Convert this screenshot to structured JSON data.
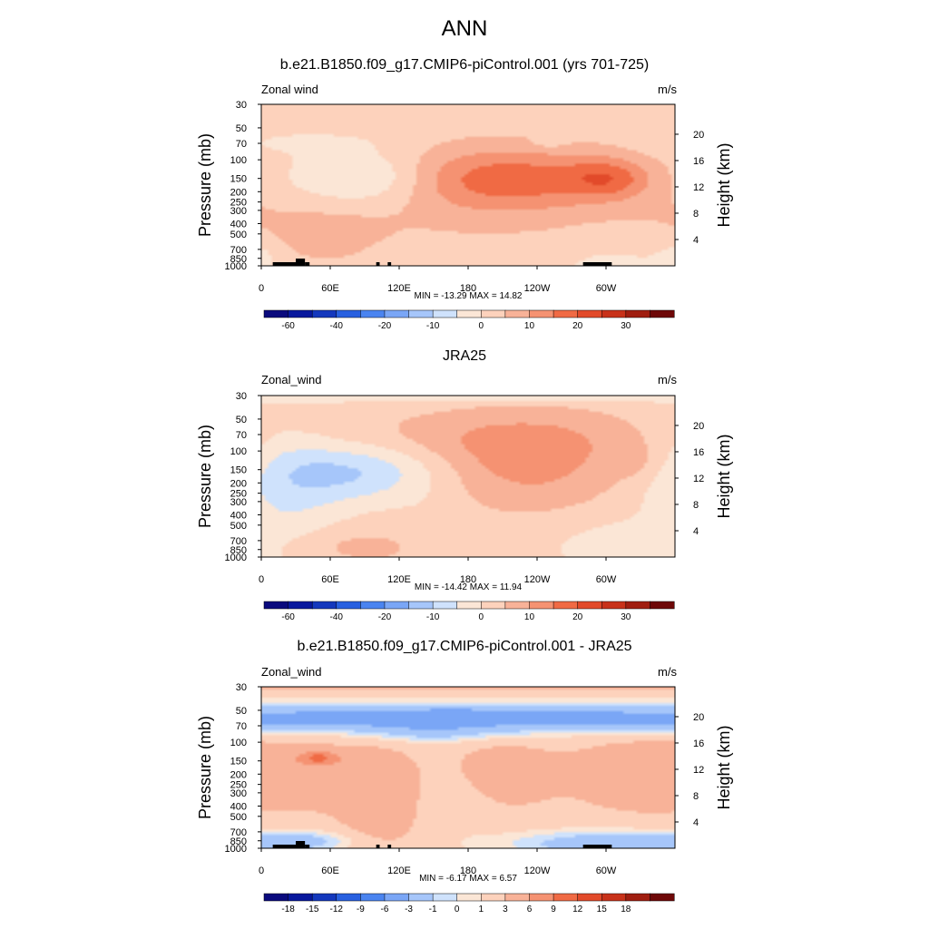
{
  "title": "ANN",
  "chart_data": [
    {
      "type": "heatmap",
      "id": "p1",
      "title": "b.e21.B1850.f09_g17.CMIP6-piControl.001 (yrs 701-725)",
      "variable": "Zonal wind",
      "units": "m/s",
      "ylabel": "Pressure (mb)",
      "ylabel_right": "Height (km)",
      "pressure_ticks": [
        "30",
        "50",
        "70",
        "100",
        "150",
        "200",
        "250",
        "300",
        "400",
        "500",
        "700",
        "850",
        "1000"
      ],
      "height_ticks": [
        "20",
        "16",
        "12",
        "8",
        "4"
      ],
      "lon_ticks": [
        "0",
        "60E",
        "120E",
        "180",
        "120W",
        "60W"
      ],
      "min_label": "MIN = -13.29",
      "max_label": "MAX =  14.82",
      "colorbar_labels": [
        "-60",
        "-40",
        "-20",
        "-10",
        "0",
        "10",
        "20",
        "30"
      ],
      "levels": [
        -70,
        -60,
        -50,
        -40,
        -30,
        -20,
        -15,
        -10,
        -5,
        0,
        5,
        10,
        15,
        20,
        25,
        30,
        35,
        40
      ],
      "min": -13.29,
      "max": 14.82,
      "background": 2,
      "features": [
        {
          "lon": 210,
          "p": 150,
          "dlon": 80,
          "dp": 0.45,
          "v": 12
        },
        {
          "lon": 302,
          "p": 150,
          "dlon": 25,
          "dp": 0.3,
          "v": 10
        },
        {
          "lon": 210,
          "p": 200,
          "dlon": 75,
          "dp": 0.8,
          "v": 5
        },
        {
          "lon": 92,
          "p": 150,
          "dlon": 45,
          "dp": 0.42,
          "v": -12
        },
        {
          "lon": 50,
          "p": 500,
          "dlon": 55,
          "dp": 0.6,
          "v": 5
        },
        {
          "lon": 120,
          "p": 2800,
          "dlon": 30,
          "dp": 1.0,
          "v": -3
        },
        {
          "lon": 40,
          "p": 70,
          "dlon": 40,
          "dp": 0.15,
          "v": -4
        },
        {
          "lon": 315,
          "p": 1000,
          "dlon": 45,
          "dp": 0.4,
          "v": -4
        },
        {
          "lon": 0,
          "p": 800,
          "dlon": 12,
          "dp": 0.3,
          "v": -4
        },
        {
          "lon": 250,
          "p": 70,
          "dlon": 12,
          "dp": 0.1,
          "v": -3
        }
      ],
      "topography": [
        [
          10,
          30
        ],
        [
          30,
          38
        ],
        [
          38,
          42
        ],
        [
          100,
          103
        ],
        [
          110,
          113
        ],
        [
          280,
          305
        ]
      ]
    },
    {
      "type": "heatmap",
      "id": "p2",
      "title": "JRA25",
      "variable": "Zonal_wind",
      "units": "m/s",
      "ylabel": "Pressure (mb)",
      "ylabel_right": "Height (km)",
      "pressure_ticks": [
        "30",
        "50",
        "70",
        "100",
        "150",
        "200",
        "250",
        "300",
        "400",
        "500",
        "700",
        "850",
        "1000"
      ],
      "height_ticks": [
        "20",
        "16",
        "12",
        "8",
        "4"
      ],
      "lon_ticks": [
        "0",
        "60E",
        "120E",
        "180",
        "120W",
        "60W"
      ],
      "min_label": "MIN = -14.42",
      "max_label": "MAX =  11.94",
      "colorbar_labels": [
        "-60",
        "-40",
        "-20",
        "-10",
        "0",
        "10",
        "20",
        "30"
      ],
      "levels": [
        -70,
        -60,
        -50,
        -40,
        -30,
        -20,
        -15,
        -10,
        -5,
        0,
        5,
        10,
        15,
        20,
        25,
        30,
        35,
        40
      ],
      "min": -14.42,
      "max": 11.94,
      "background": 2,
      "features": [
        {
          "lon": 230,
          "p": 130,
          "dlon": 60,
          "dp": 0.7,
          "v": 10
        },
        {
          "lon": 330,
          "p": 130,
          "dlon": 20,
          "dp": 0.3,
          "v": 4
        },
        {
          "lon": 200,
          "p": 70,
          "dlon": 120,
          "dp": 0.4,
          "v": 4
        },
        {
          "lon": 80,
          "p": 160,
          "dlon": 55,
          "dp": 0.45,
          "v": -12
        },
        {
          "lon": 20,
          "p": 300,
          "dlon": 35,
          "dp": 1.2,
          "v": -6
        },
        {
          "lon": 175,
          "p": 31,
          "dlon": 400,
          "dp": 0.08,
          "v": -6
        },
        {
          "lon": 70,
          "p": 800,
          "dlon": 60,
          "dp": 0.3,
          "v": 5
        },
        {
          "lon": 310,
          "p": 800,
          "dlon": 40,
          "dp": 0.4,
          "v": -5
        },
        {
          "lon": 150,
          "p": 500,
          "dlon": 20,
          "dp": 0.5,
          "v": -2
        }
      ],
      "topography": []
    },
    {
      "type": "heatmap",
      "id": "p3",
      "title": "b.e21.B1850.f09_g17.CMIP6-piControl.001 - JRA25",
      "variable": "Zonal_wind",
      "units": "m/s",
      "ylabel": "Pressure (mb)",
      "ylabel_right": "Height (km)",
      "pressure_ticks": [
        "30",
        "50",
        "70",
        "100",
        "150",
        "200",
        "250",
        "300",
        "400",
        "500",
        "700",
        "850",
        "1000"
      ],
      "height_ticks": [
        "20",
        "16",
        "12",
        "8",
        "4"
      ],
      "lon_ticks": [
        "0",
        "60E",
        "120E",
        "180",
        "120W",
        "60W"
      ],
      "min_label": "MIN =  -6.17",
      "max_label": "MAX =   6.57",
      "colorbar_labels": [
        "-18",
        "-15",
        "-12",
        "-9",
        "-6",
        "-3",
        "-1",
        "0",
        "1",
        "3",
        "6",
        "9",
        "12",
        "15",
        "18"
      ],
      "levels": [
        -21,
        -18,
        -15,
        -12,
        -9,
        -6,
        -3,
        -1,
        0,
        1,
        3,
        6,
        9,
        12,
        15,
        18,
        21
      ],
      "min": -6.17,
      "max": 6.57,
      "background": 1.5,
      "features": [
        {
          "lon": 175,
          "p": 60,
          "dlon": 600,
          "dp": 0.22,
          "v": -6
        },
        {
          "lon": 150,
          "p": 85,
          "dlon": 50,
          "dp": 0.15,
          "v": -2
        },
        {
          "lon": 165,
          "p": 50,
          "dlon": 12,
          "dp": 0.06,
          "v": -2
        },
        {
          "lon": 175,
          "p": 31,
          "dlon": 600,
          "dp": 0.05,
          "v": 2
        },
        {
          "lon": 45,
          "p": 200,
          "dlon": 50,
          "dp": 0.6,
          "v": 3
        },
        {
          "lon": 210,
          "p": 200,
          "dlon": 35,
          "dp": 0.6,
          "v": 3
        },
        {
          "lon": 320,
          "p": 200,
          "dlon": 40,
          "dp": 0.6,
          "v": 3
        },
        {
          "lon": 105,
          "p": 400,
          "dlon": 25,
          "dp": 0.8,
          "v": 3
        },
        {
          "lon": 50,
          "p": 140,
          "dlon": 12,
          "dp": 0.1,
          "v": 6
        },
        {
          "lon": 170,
          "p": 350,
          "dlon": 25,
          "dp": 0.5,
          "v": -1
        },
        {
          "lon": 300,
          "p": 900,
          "dlon": 60,
          "dp": 0.2,
          "v": -4
        },
        {
          "lon": 30,
          "p": 850,
          "dlon": 40,
          "dp": 0.15,
          "v": -3
        }
      ],
      "topography": [
        [
          10,
          30
        ],
        [
          30,
          38
        ],
        [
          38,
          42
        ],
        [
          100,
          103
        ],
        [
          110,
          113
        ],
        [
          280,
          305
        ]
      ]
    }
  ],
  "colors": {
    "palette": [
      "#0a0a7d",
      "#08189d",
      "#1438bd",
      "#2860e0",
      "#4a84f0",
      "#7aa6f6",
      "#a6c6fa",
      "#cfe2fc",
      "#fbe6d6",
      "#fdd2bc",
      "#f8b298",
      "#f59272",
      "#f06a44",
      "#e24a2a",
      "#c8321a",
      "#a01e10",
      "#6e0808"
    ],
    "topography": "#000000"
  }
}
